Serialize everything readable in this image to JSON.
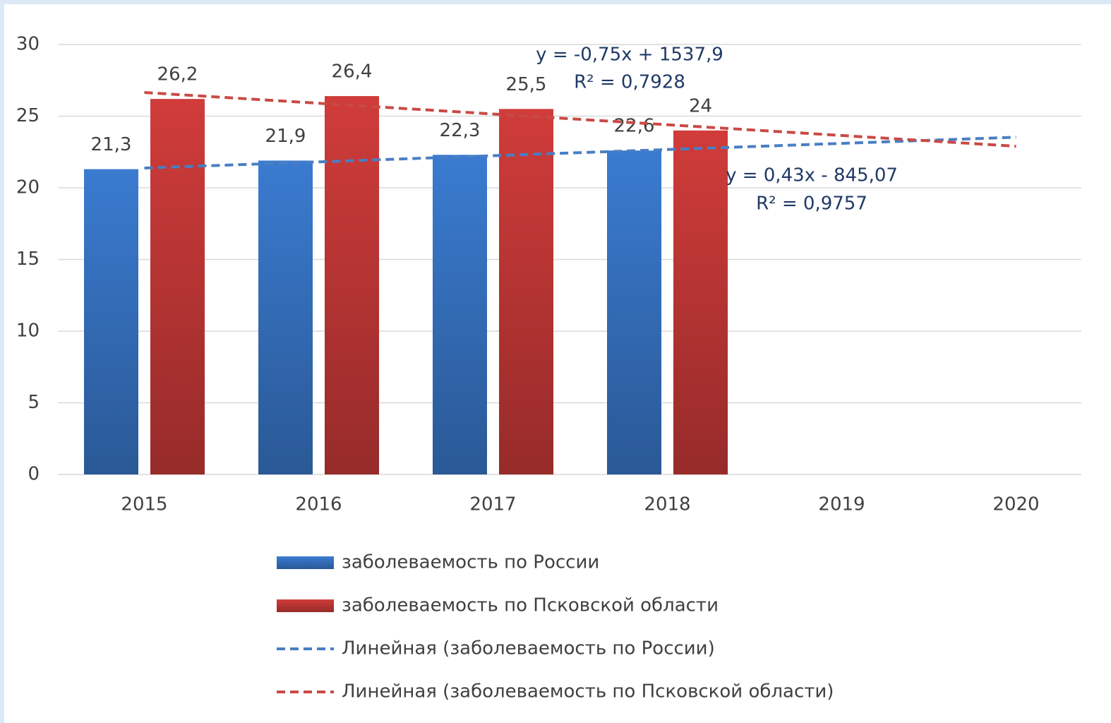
{
  "chart_data": {
    "type": "bar",
    "categories": [
      "2015",
      "2016",
      "2017",
      "2018",
      "2019",
      "2020"
    ],
    "series": [
      {
        "name": "заболеваемость по России",
        "type": "bar",
        "color": "#3a7bd0",
        "values": [
          21.3,
          21.9,
          22.3,
          22.6,
          null,
          null
        ],
        "value_labels": [
          "21,3",
          "21,9",
          "22,3",
          "22,6",
          null,
          null
        ]
      },
      {
        "name": "заболеваемость по Псковской области",
        "type": "bar",
        "color": "#d03c3a",
        "values": [
          26.2,
          26.4,
          25.5,
          24,
          null,
          null
        ],
        "value_labels": [
          "26,2",
          "26,4",
          "25,5",
          "24",
          null,
          null
        ]
      },
      {
        "name": "Линейная (заболеваемость по России)",
        "type": "line",
        "dashed": true,
        "color": "#4a7ec4",
        "values": [
          21.38,
          21.81,
          22.24,
          22.67,
          23.1,
          23.53
        ]
      },
      {
        "name": "Линейная (заболеваемость по Псковской области)",
        "type": "line",
        "dashed": true,
        "color": "#c94a45",
        "values": [
          26.65,
          25.9,
          25.15,
          24.4,
          23.65,
          22.9
        ]
      }
    ],
    "annotations": [
      "y = -0,75x + 1537,9",
      "R² = 0,7928",
      "y = 0,43x - 845,07",
      "R² = 0,9757"
    ],
    "ylim": [
      0,
      30
    ],
    "yticks": [
      0,
      5,
      10,
      15,
      20,
      25,
      30
    ],
    "grid": true,
    "legend": "bottom"
  }
}
